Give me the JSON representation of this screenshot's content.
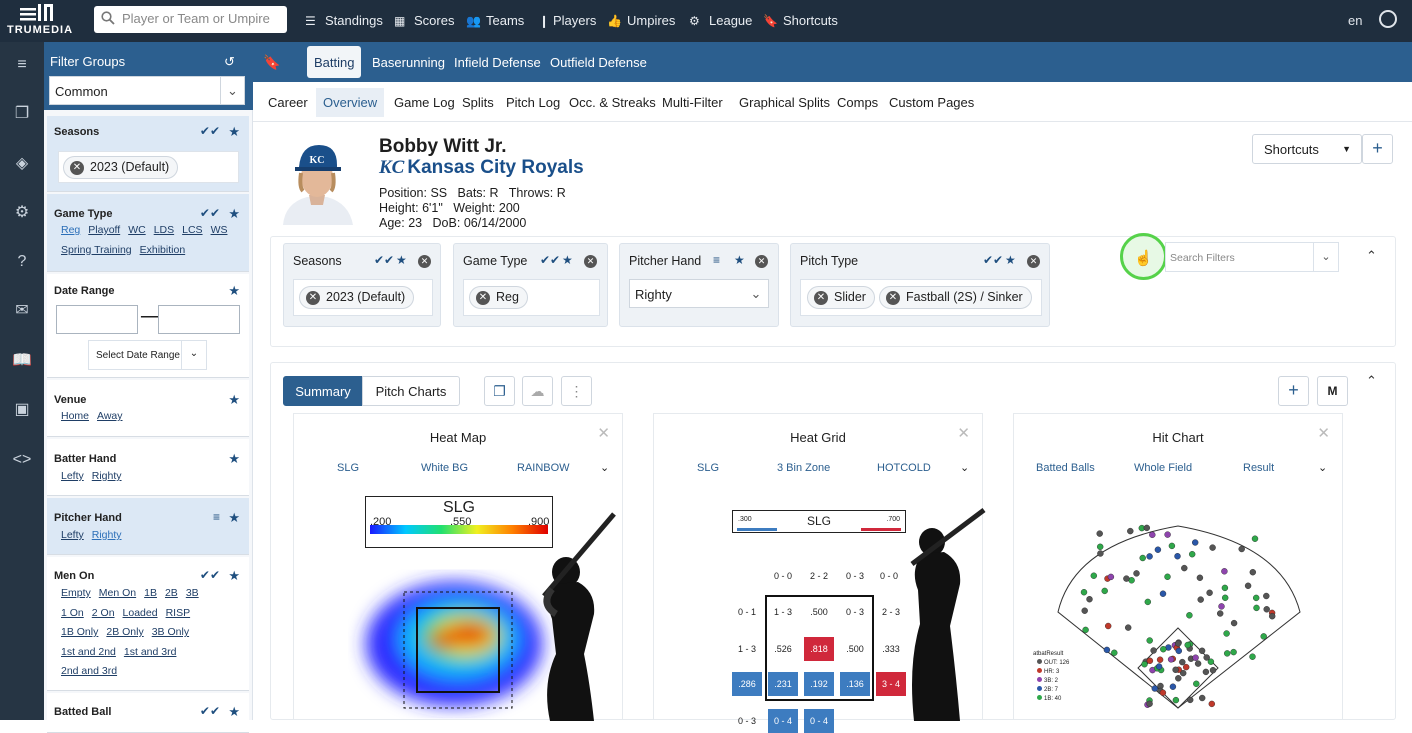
{
  "topnav": {
    "logo_text": "TRUMEDIA",
    "search_placeholder": "Player or Team or Umpire",
    "links": [
      {
        "label": "Standings",
        "icon": "list-icon"
      },
      {
        "label": "Scores",
        "icon": "grid-icon"
      },
      {
        "label": "Teams",
        "icon": "people-icon"
      },
      {
        "label": "Players",
        "icon": "person-icon"
      },
      {
        "label": "Umpires",
        "icon": "thumbs-up-icon"
      },
      {
        "label": "League",
        "icon": "gears-icon"
      },
      {
        "label": "Shortcuts",
        "icon": "bookmark-icon"
      }
    ],
    "lang": "en"
  },
  "sidebar": {
    "title": "Filter Groups",
    "group_select": "Common",
    "sections": {
      "seasons": {
        "title": "Seasons",
        "chip": "2023 (Default)"
      },
      "game_type": {
        "title": "Game Type",
        "options_row1": [
          "Reg",
          "Playoff",
          "WC",
          "LDS",
          "LCS",
          "WS"
        ],
        "options_row2": [
          "Spring Training",
          "Exhibition"
        ]
      },
      "date_range": {
        "title": "Date Range",
        "select_label": "Select Date Range"
      },
      "venue": {
        "title": "Venue",
        "options": [
          "Home",
          "Away"
        ]
      },
      "batter_hand": {
        "title": "Batter Hand",
        "options": [
          "Lefty",
          "Righty"
        ]
      },
      "pitcher_hand": {
        "title": "Pitcher Hand",
        "options": [
          "Lefty",
          "Righty"
        ]
      },
      "men_on": {
        "title": "Men On",
        "rows": [
          [
            "Empty",
            "Men On",
            "1B",
            "2B",
            "3B"
          ],
          [
            "1 On",
            "2 On",
            "Loaded",
            "RISP"
          ],
          [
            "1B Only",
            "2B Only",
            "3B Only"
          ],
          [
            "1st and 2nd",
            "1st and 3rd"
          ],
          [
            "2nd and 3rd"
          ]
        ]
      },
      "batted_ball": {
        "title": "Batted Ball"
      }
    }
  },
  "tabs": [
    "Batting",
    "Baserunning",
    "Infield Defense",
    "Outfield Defense"
  ],
  "subnav": [
    "Career",
    "Overview",
    "Game Log",
    "Splits",
    "Pitch Log",
    "Occ. & Streaks",
    "Multi-Filter",
    "Graphical Splits",
    "Comps",
    "Custom Pages"
  ],
  "player": {
    "name": "Bobby Witt Jr.",
    "team_logo": "KC",
    "team": "Kansas City Royals",
    "position_label": "Position:",
    "position": "SS",
    "bats_label": "Bats:",
    "bats": "R",
    "throws_label": "Throws:",
    "throws": "R",
    "height_label": "Height:",
    "height": "6'1\"",
    "weight_label": "Weight:",
    "weight": "200",
    "age_label": "Age:",
    "age": "23",
    "dob_label": "DoB:",
    "dob": "06/14/2000"
  },
  "shortcuts_button": "Shortcuts",
  "filters": {
    "seasons": {
      "title": "Seasons",
      "chip": "2023 (Default)"
    },
    "game_type": {
      "title": "Game Type",
      "chip": "Reg"
    },
    "pitcher_hand": {
      "title": "Pitcher Hand",
      "value": "Righty"
    },
    "pitch_type": {
      "title": "Pitch Type",
      "chips": [
        "Slider",
        "Fastball (2S) / Sinker"
      ]
    },
    "search_placeholder": "Search Filters"
  },
  "view_tabs": [
    "Summary",
    "Pitch Charts"
  ],
  "m_button": "M",
  "cards": {
    "heat_map": {
      "title": "Heat Map",
      "options": [
        "SLG",
        "White BG",
        "RAINBOW"
      ],
      "legend_title": "SLG",
      "legend_ticks": [
        ".200",
        ".550",
        ".900"
      ]
    },
    "heat_grid": {
      "title": "Heat Grid",
      "options": [
        "SLG",
        "3 Bin Zone",
        "HOTCOLD"
      ],
      "legend_title": "SLG",
      "legend_low": ".300",
      "legend_high": ".700",
      "top_labels": [
        "0 - 0",
        "2 - 2",
        "0 - 3",
        "0 - 0"
      ],
      "left_labels": [
        "0 - 1",
        "1 - 3"
      ],
      "rows": [
        [
          "1 - 3",
          ".500",
          "0 - 3",
          "2 - 3"
        ],
        [
          ".526",
          ".818",
          ".500",
          ".333"
        ],
        [
          ".286",
          ".231",
          ".192",
          ".136",
          "3 - 4"
        ]
      ],
      "bottom_labels": [
        "0 - 3",
        "0 - 4",
        "0 - 4"
      ]
    },
    "hit_chart": {
      "title": "Hit Chart",
      "options": [
        "Batted Balls",
        "Whole Field",
        "Result"
      ],
      "legend_title": "atbatResult",
      "legend": [
        {
          "label": "OUT: 126",
          "color": "#555555"
        },
        {
          "label": "HR: 3",
          "color": "#c0392b"
        },
        {
          "label": "3B: 2",
          "color": "#8e44ad"
        },
        {
          "label": "2B: 7",
          "color": "#2a57a8"
        },
        {
          "label": "1B: 40",
          "color": "#2fa84a"
        }
      ]
    }
  },
  "colors": {
    "topnav": "#1f2e3e",
    "brand_blue": "#2c5f8f",
    "hot": "#d0283b",
    "cold": "#3d7cc0"
  }
}
